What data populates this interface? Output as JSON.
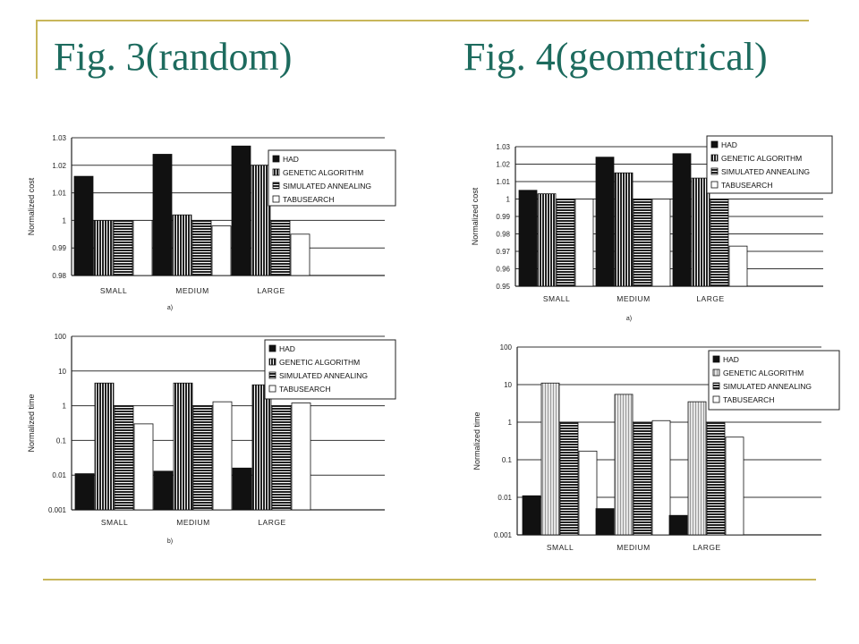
{
  "slide": {
    "title_left": "Fig. 3(random)",
    "title_right": "Fig. 4(geometrical)",
    "colors": {
      "accent_line": "#c8b65a",
      "title": "#1d6b5e"
    }
  },
  "chart_data": [
    {
      "id": "fig3a",
      "type": "bar",
      "caption": "a)",
      "ylabel": "Normalized cost",
      "xlabel": "",
      "ylim": [
        0.98,
        1.03
      ],
      "yticks": [
        "0.98",
        "0.99",
        "1",
        "1.01",
        "1.02",
        "1.03"
      ],
      "log": false,
      "categories": [
        "SMALL",
        "MEDIUM",
        "LARGE"
      ],
      "legend_position": "top-right",
      "series": [
        {
          "name": "HAD",
          "values": [
            1.016,
            1.024,
            1.027
          ]
        },
        {
          "name": "GENETIC ALGORITHM",
          "values": [
            1.0,
            1.002,
            1.02
          ]
        },
        {
          "name": "SIMULATED ANNEALING",
          "values": [
            1.0,
            1.0,
            1.0
          ]
        },
        {
          "name": "TABUSEARCH",
          "values": [
            1.0,
            0.998,
            0.995
          ]
        }
      ]
    },
    {
      "id": "fig3b",
      "type": "bar",
      "caption": "b)",
      "ylabel": "Normalized time",
      "xlabel": "",
      "ylim": [
        0.001,
        100
      ],
      "yticks": [
        "0.001",
        "0.01",
        "0.1",
        "1",
        "10",
        "100"
      ],
      "log": true,
      "categories": [
        "SMALL",
        "MEDIUM",
        "LARGE"
      ],
      "legend_position": "top-right",
      "series": [
        {
          "name": "HAD",
          "values": [
            0.011,
            0.013,
            0.016
          ]
        },
        {
          "name": "GENETIC ALGORITHM",
          "values": [
            4.5,
            4.5,
            4.0
          ]
        },
        {
          "name": "SIMULATED ANNEALING",
          "values": [
            1.0,
            1.0,
            1.0
          ]
        },
        {
          "name": "TABUSEARCH",
          "values": [
            0.3,
            1.3,
            1.2
          ]
        }
      ]
    },
    {
      "id": "fig4a",
      "type": "bar",
      "caption": "a)",
      "ylabel": "Normalized cost",
      "xlabel": "",
      "ylim": [
        0.95,
        1.03
      ],
      "yticks": [
        "0.95",
        "0.96",
        "0.97",
        "0.98",
        "0.99",
        "1",
        "1.01",
        "1.02",
        "1.03"
      ],
      "log": false,
      "categories": [
        "SMALL",
        "MEDIUM",
        "LARGE"
      ],
      "legend_position": "top-right",
      "series": [
        {
          "name": "HAD",
          "values": [
            1.005,
            1.024,
            1.026
          ]
        },
        {
          "name": "GENETIC ALGORITHM",
          "values": [
            1.003,
            1.015,
            1.012
          ]
        },
        {
          "name": "SIMULATED ANNEALING",
          "values": [
            1.0,
            1.0,
            1.0
          ]
        },
        {
          "name": "TABUSEARCH",
          "values": [
            1.0,
            1.0,
            0.973
          ]
        }
      ]
    },
    {
      "id": "fig4b",
      "type": "bar",
      "caption": "",
      "ylabel": "Normalized time",
      "xlabel": "",
      "ylim": [
        0.001,
        100
      ],
      "yticks": [
        "0.001",
        "0.01",
        "0.1",
        "1",
        "10",
        "100"
      ],
      "log": true,
      "categories": [
        "SMALL",
        "MEDIUM",
        "LARGE"
      ],
      "legend_position": "top-right",
      "series": [
        {
          "name": "HAD",
          "values": [
            0.011,
            0.005,
            0.0033
          ]
        },
        {
          "name": "GENETIC ALGORITHM",
          "values": [
            11,
            5.5,
            3.5
          ]
        },
        {
          "name": "SIMULATED ANNEALING",
          "values": [
            1.0,
            1.0,
            1.0
          ]
        },
        {
          "name": "TABUSEARCH",
          "values": [
            0.17,
            1.1,
            0.4
          ]
        }
      ]
    }
  ]
}
